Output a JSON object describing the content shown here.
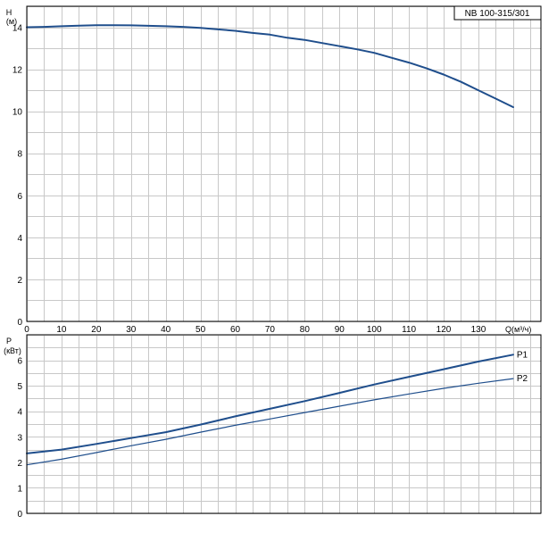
{
  "chart_data": [
    {
      "type": "line",
      "name_box": "NB 100-315/301",
      "ylabel": "H",
      "yunit": "(м)",
      "xlabel": "Q(м³/ч)",
      "xlim": [
        0,
        148
      ],
      "ylim": [
        0,
        15
      ],
      "xticks": [
        0,
        10,
        20,
        30,
        40,
        50,
        60,
        70,
        80,
        90,
        100,
        110,
        120,
        130
      ],
      "yticks": [
        0,
        2,
        4,
        6,
        8,
        10,
        12,
        14
      ],
      "grid": true,
      "series": [
        {
          "name": "",
          "color": "#1f4e8c",
          "points": [
            [
              0,
              14.0
            ],
            [
              5,
              14.02
            ],
            [
              10,
              14.05
            ],
            [
              15,
              14.08
            ],
            [
              20,
              14.1
            ],
            [
              25,
              14.1
            ],
            [
              30,
              14.09
            ],
            [
              35,
              14.07
            ],
            [
              40,
              14.05
            ],
            [
              45,
              14.02
            ],
            [
              50,
              13.97
            ],
            [
              55,
              13.9
            ],
            [
              60,
              13.83
            ],
            [
              65,
              13.73
            ],
            [
              70,
              13.65
            ],
            [
              75,
              13.5
            ],
            [
              80,
              13.4
            ],
            [
              85,
              13.25
            ],
            [
              90,
              13.1
            ],
            [
              95,
              12.95
            ],
            [
              100,
              12.78
            ],
            [
              105,
              12.55
            ],
            [
              110,
              12.32
            ],
            [
              115,
              12.05
            ],
            [
              120,
              11.75
            ],
            [
              125,
              11.4
            ],
            [
              130,
              11.0
            ],
            [
              135,
              10.6
            ],
            [
              140,
              10.2
            ]
          ]
        }
      ]
    },
    {
      "type": "line",
      "ylabel": "P",
      "yunit": "(кВт)",
      "xlim": [
        0,
        148
      ],
      "ylim": [
        0,
        7
      ],
      "yticks": [
        0,
        1,
        2,
        3,
        4,
        5,
        6
      ],
      "grid": true,
      "series": [
        {
          "name": "P1",
          "color": "#1f4e8c",
          "points": [
            [
              0,
              2.35
            ],
            [
              10,
              2.5
            ],
            [
              20,
              2.72
            ],
            [
              30,
              2.95
            ],
            [
              40,
              3.18
            ],
            [
              50,
              3.48
            ],
            [
              60,
              3.8
            ],
            [
              70,
              4.1
            ],
            [
              80,
              4.4
            ],
            [
              90,
              4.72
            ],
            [
              100,
              5.05
            ],
            [
              110,
              5.35
            ],
            [
              120,
              5.65
            ],
            [
              130,
              5.95
            ],
            [
              140,
              6.22
            ]
          ]
        },
        {
          "name": "P2",
          "color": "#1f4e8c",
          "points": [
            [
              0,
              1.9
            ],
            [
              10,
              2.12
            ],
            [
              20,
              2.38
            ],
            [
              30,
              2.65
            ],
            [
              40,
              2.9
            ],
            [
              50,
              3.18
            ],
            [
              60,
              3.45
            ],
            [
              70,
              3.7
            ],
            [
              80,
              3.95
            ],
            [
              90,
              4.2
            ],
            [
              100,
              4.45
            ],
            [
              110,
              4.68
            ],
            [
              120,
              4.9
            ],
            [
              130,
              5.1
            ],
            [
              140,
              5.28
            ]
          ]
        }
      ]
    }
  ]
}
